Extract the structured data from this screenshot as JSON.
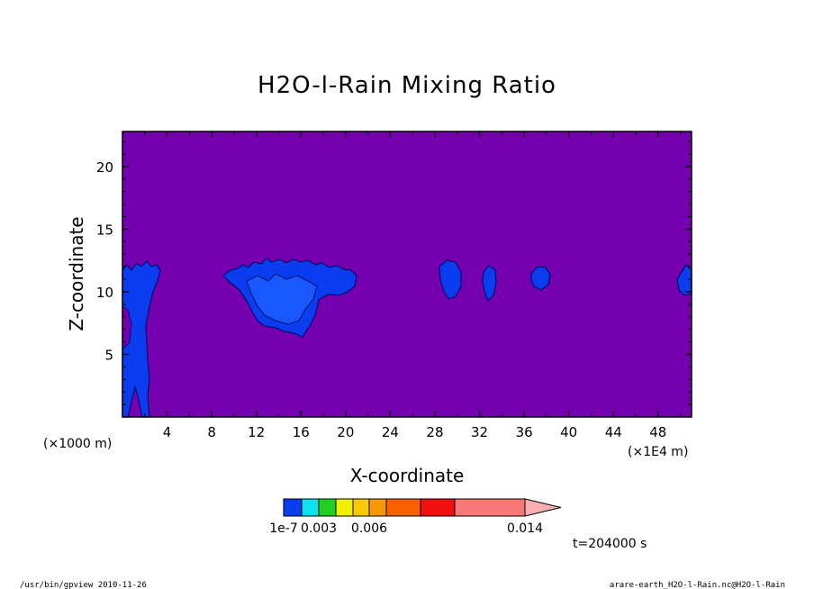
{
  "chart_data": {
    "type": "heatmap",
    "title": "H2O-l-Rain Mixing Ratio",
    "xlabel": "X-coordinate",
    "ylabel": "Z-coordinate",
    "x_unit": "(×1E4 m)",
    "y_unit": "(×1000 m)",
    "xlim": [
      0,
      51
    ],
    "ylim": [
      0,
      22.8
    ],
    "x_ticks": [
      4,
      8,
      12,
      16,
      20,
      24,
      28,
      32,
      36,
      40,
      44,
      48
    ],
    "y_ticks": [
      5,
      10,
      15,
      20
    ],
    "background_color": "#7400b0",
    "contour_levels": [
      1e-07,
      0.003,
      0.006,
      0.014
    ],
    "colorbar": {
      "colors": [
        "#0a3cf0",
        "#10e0f0",
        "#20d020",
        "#f0f000",
        "#f8c800",
        "#f89800",
        "#f86000",
        "#f01010",
        "#f87878",
        "#f8b0b0"
      ],
      "labels": [
        "1e-7",
        "0.003",
        "0.006",
        "0.014"
      ],
      "label_values": [
        0,
        0.003,
        0.006,
        0.014
      ]
    },
    "regions": [
      {
        "name": "left-column",
        "level": "low",
        "x_range": [
          0,
          3.5
        ],
        "z_range": [
          0,
          12.5
        ]
      },
      {
        "name": "anvil-12-21",
        "level": "low",
        "x_range": [
          9,
          21
        ],
        "z_range": [
          6.5,
          12.5
        ]
      },
      {
        "name": "blob-29",
        "level": "low",
        "x_range": [
          28,
          30.5
        ],
        "z_range": [
          9.5,
          12.5
        ]
      },
      {
        "name": "blob-33",
        "level": "low",
        "x_range": [
          32,
          33.6
        ],
        "z_range": [
          9.5,
          12
        ]
      },
      {
        "name": "blob-37",
        "level": "low",
        "x_range": [
          36.6,
          38.4
        ],
        "z_range": [
          10,
          11.9
        ]
      },
      {
        "name": "right-edge",
        "level": "low",
        "x_range": [
          49.5,
          51
        ],
        "z_range": [
          9.6,
          12.2
        ]
      }
    ],
    "time_label": "t=204000 s"
  },
  "footer": {
    "left": "/usr/bin/gpview   2010-11-26",
    "right": "arare-earth_H2O-l-Rain.nc@H2O-l-Rain"
  }
}
